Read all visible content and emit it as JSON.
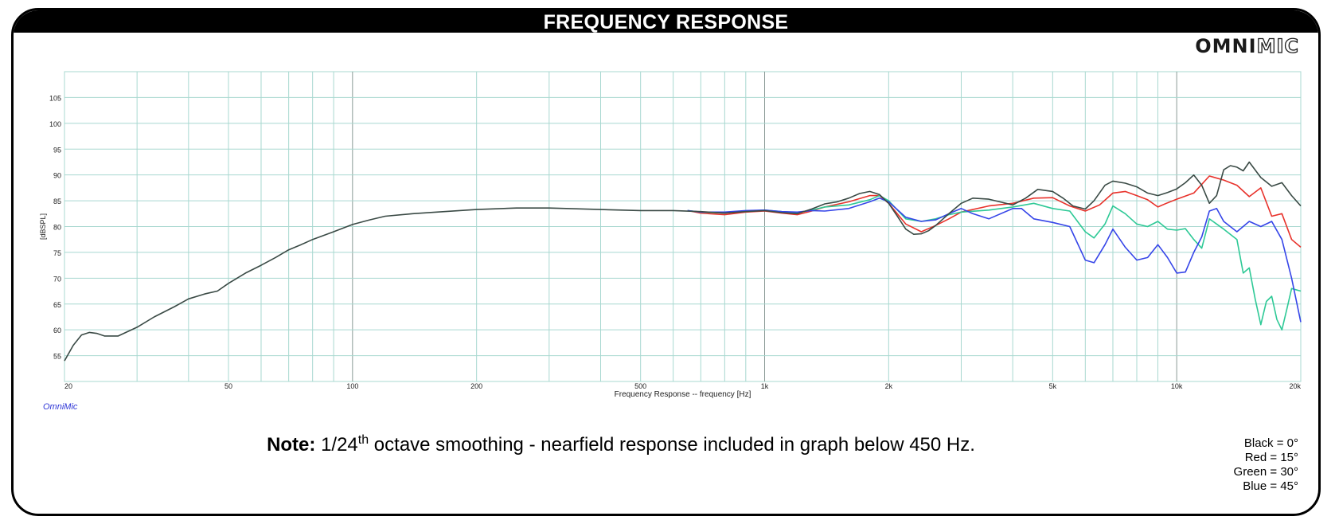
{
  "header": {
    "title": "FREQUENCY RESPONSE"
  },
  "logo": {
    "solid": "OMNI",
    "outline": "MIC"
  },
  "watermark": "OmniMic",
  "note": {
    "bold": "Note:",
    "pre": "1/24",
    "sup": "th",
    "post": "octave smoothing - nearfield response included in graph below 450 Hz."
  },
  "legend_key": [
    "Black = 0°",
    "Red = 15°",
    "Green = 30°",
    "Blue = 45°"
  ],
  "colors": {
    "black": "#3a4a45",
    "red": "#e8322b",
    "green": "#2ec996",
    "blue": "#3545e8",
    "grid": "#a8d8d0"
  },
  "chart_data": {
    "type": "line",
    "title": "",
    "xlabel": "Frequency Response -- frequency [Hz]",
    "ylabel": "[dBSPL]",
    "x_scale": "log",
    "xlim": [
      20,
      20000
    ],
    "ylim": [
      50,
      110
    ],
    "x_ticks": [
      20,
      50,
      100,
      200,
      500,
      1000,
      2000,
      5000,
      10000,
      20000
    ],
    "x_tick_labels": [
      "20",
      "50",
      "100",
      "200",
      "500",
      "1k",
      "2k",
      "5k",
      "10k",
      "20k"
    ],
    "y_ticks": [
      55,
      60,
      65,
      70,
      75,
      80,
      85,
      90,
      95,
      100,
      105
    ],
    "grid": true,
    "series": [
      {
        "name": "Black = 0°",
        "color": "#3a4a45",
        "points": [
          [
            20,
            54
          ],
          [
            21,
            57
          ],
          [
            22,
            59
          ],
          [
            23,
            59.5
          ],
          [
            24,
            59.3
          ],
          [
            25,
            58.8
          ],
          [
            27,
            58.8
          ],
          [
            30,
            60.5
          ],
          [
            33,
            62.5
          ],
          [
            37,
            64.5
          ],
          [
            40,
            66
          ],
          [
            44,
            67
          ],
          [
            47,
            67.5
          ],
          [
            50,
            69
          ],
          [
            55,
            71
          ],
          [
            60,
            72.5
          ],
          [
            65,
            74
          ],
          [
            70,
            75.5
          ],
          [
            75,
            76.5
          ],
          [
            80,
            77.5
          ],
          [
            90,
            79
          ],
          [
            100,
            80.4
          ],
          [
            110,
            81.3
          ],
          [
            120,
            82
          ],
          [
            140,
            82.5
          ],
          [
            160,
            82.8
          ],
          [
            200,
            83.3
          ],
          [
            250,
            83.6
          ],
          [
            300,
            83.6
          ],
          [
            400,
            83.3
          ],
          [
            500,
            83.1
          ],
          [
            600,
            83.1
          ],
          [
            700,
            82.9
          ],
          [
            800,
            82.6
          ],
          [
            900,
            82.9
          ],
          [
            1000,
            83.1
          ],
          [
            1100,
            82.7
          ],
          [
            1200,
            82.5
          ],
          [
            1300,
            83.4
          ],
          [
            1400,
            84.4
          ],
          [
            1500,
            84.8
          ],
          [
            1600,
            85.5
          ],
          [
            1700,
            86.4
          ],
          [
            1800,
            86.8
          ],
          [
            1900,
            86.2
          ],
          [
            2000,
            84.5
          ],
          [
            2100,
            82
          ],
          [
            2200,
            79.5
          ],
          [
            2300,
            78.5
          ],
          [
            2400,
            78.6
          ],
          [
            2500,
            79.2
          ],
          [
            2600,
            80.2
          ],
          [
            2800,
            82.5
          ],
          [
            3000,
            84.5
          ],
          [
            3200,
            85.5
          ],
          [
            3500,
            85.3
          ],
          [
            4000,
            84.2
          ],
          [
            4300,
            85.5
          ],
          [
            4600,
            87.2
          ],
          [
            5000,
            86.8
          ],
          [
            5300,
            85.5
          ],
          [
            5600,
            84
          ],
          [
            6000,
            83.4
          ],
          [
            6300,
            85
          ],
          [
            6700,
            88
          ],
          [
            7000,
            88.8
          ],
          [
            7500,
            88.4
          ],
          [
            8000,
            87.7
          ],
          [
            8500,
            86.5
          ],
          [
            9000,
            86
          ],
          [
            9500,
            86.6
          ],
          [
            10000,
            87.3
          ],
          [
            10500,
            88.5
          ],
          [
            11000,
            90
          ],
          [
            11500,
            88
          ],
          [
            12000,
            84.5
          ],
          [
            12500,
            86
          ],
          [
            13000,
            91
          ],
          [
            13500,
            91.8
          ],
          [
            14000,
            91.5
          ],
          [
            14500,
            90.8
          ],
          [
            15000,
            92.5
          ],
          [
            16000,
            89.5
          ],
          [
            17000,
            87.8
          ],
          [
            18000,
            88.5
          ],
          [
            19000,
            86
          ],
          [
            20000,
            84
          ]
        ]
      },
      {
        "name": "Red = 15°",
        "color": "#e8322b",
        "points": [
          [
            650,
            83.1
          ],
          [
            700,
            82.6
          ],
          [
            800,
            82.3
          ],
          [
            900,
            82.8
          ],
          [
            1000,
            83
          ],
          [
            1100,
            82.6
          ],
          [
            1200,
            82.3
          ],
          [
            1300,
            83
          ],
          [
            1400,
            83.8
          ],
          [
            1600,
            84.8
          ],
          [
            1800,
            86
          ],
          [
            1900,
            86
          ],
          [
            2000,
            84.5
          ],
          [
            2200,
            80.5
          ],
          [
            2400,
            79
          ],
          [
            2600,
            80.2
          ],
          [
            2800,
            81.5
          ],
          [
            3000,
            82.8
          ],
          [
            3500,
            84
          ],
          [
            4000,
            84.5
          ],
          [
            4500,
            85.5
          ],
          [
            5000,
            85.6
          ],
          [
            5500,
            84
          ],
          [
            6000,
            83
          ],
          [
            6500,
            84.2
          ],
          [
            7000,
            86.5
          ],
          [
            7500,
            86.8
          ],
          [
            8000,
            86
          ],
          [
            8500,
            85.2
          ],
          [
            9000,
            83.8
          ],
          [
            9500,
            84.6
          ],
          [
            10000,
            85.3
          ],
          [
            11000,
            86.5
          ],
          [
            12000,
            89.8
          ],
          [
            13000,
            89
          ],
          [
            14000,
            88
          ],
          [
            15000,
            85.8
          ],
          [
            16000,
            87.5
          ],
          [
            17000,
            82
          ],
          [
            18000,
            82.5
          ],
          [
            19000,
            77.5
          ],
          [
            20000,
            76
          ]
        ]
      },
      {
        "name": "Green = 30°",
        "color": "#2ec996",
        "points": [
          [
            650,
            83.1
          ],
          [
            700,
            82.8
          ],
          [
            800,
            82.6
          ],
          [
            900,
            83
          ],
          [
            1000,
            83.2
          ],
          [
            1100,
            82.9
          ],
          [
            1200,
            82.7
          ],
          [
            1300,
            83.2
          ],
          [
            1400,
            83.8
          ],
          [
            1600,
            84.2
          ],
          [
            1800,
            85.2
          ],
          [
            1900,
            86
          ],
          [
            2000,
            85
          ],
          [
            2200,
            81.5
          ],
          [
            2400,
            81
          ],
          [
            2600,
            81.5
          ],
          [
            2800,
            82.3
          ],
          [
            3000,
            82.8
          ],
          [
            3500,
            83.2
          ],
          [
            4000,
            83.8
          ],
          [
            4500,
            84.5
          ],
          [
            5000,
            83.5
          ],
          [
            5500,
            83
          ],
          [
            6000,
            79
          ],
          [
            6300,
            77.8
          ],
          [
            6700,
            80.5
          ],
          [
            7000,
            84
          ],
          [
            7500,
            82.5
          ],
          [
            8000,
            80.5
          ],
          [
            8500,
            80
          ],
          [
            9000,
            81
          ],
          [
            9500,
            79.5
          ],
          [
            10000,
            79.3
          ],
          [
            10500,
            79.6
          ],
          [
            11000,
            77.5
          ],
          [
            11500,
            75.8
          ],
          [
            12000,
            81.5
          ],
          [
            12500,
            80.5
          ],
          [
            13000,
            79.5
          ],
          [
            14000,
            77.5
          ],
          [
            14500,
            71
          ],
          [
            15000,
            72
          ],
          [
            15500,
            66
          ],
          [
            16000,
            61
          ],
          [
            16500,
            65.5
          ],
          [
            17000,
            66.5
          ],
          [
            17500,
            62
          ],
          [
            18000,
            60
          ],
          [
            18500,
            64
          ],
          [
            19000,
            68
          ],
          [
            20000,
            67.5
          ]
        ]
      },
      {
        "name": "Blue = 45°",
        "color": "#3545e8",
        "points": [
          [
            650,
            83.1
          ],
          [
            700,
            82.8
          ],
          [
            800,
            82.8
          ],
          [
            900,
            83.1
          ],
          [
            1000,
            83.2
          ],
          [
            1100,
            82.9
          ],
          [
            1200,
            82.8
          ],
          [
            1300,
            83.1
          ],
          [
            1400,
            83
          ],
          [
            1600,
            83.5
          ],
          [
            1800,
            84.8
          ],
          [
            1900,
            85.5
          ],
          [
            2000,
            84.8
          ],
          [
            2200,
            81.8
          ],
          [
            2400,
            81
          ],
          [
            2600,
            81.3
          ],
          [
            2800,
            82.5
          ],
          [
            3000,
            83.5
          ],
          [
            3200,
            82.5
          ],
          [
            3500,
            81.5
          ],
          [
            4000,
            83.5
          ],
          [
            4200,
            83.5
          ],
          [
            4500,
            81.5
          ],
          [
            5000,
            80.8
          ],
          [
            5500,
            80
          ],
          [
            6000,
            73.5
          ],
          [
            6300,
            73
          ],
          [
            6700,
            76.5
          ],
          [
            7000,
            79.5
          ],
          [
            7500,
            76
          ],
          [
            8000,
            73.5
          ],
          [
            8500,
            74
          ],
          [
            9000,
            76.5
          ],
          [
            9500,
            74
          ],
          [
            10000,
            71
          ],
          [
            10500,
            71.2
          ],
          [
            11000,
            75
          ],
          [
            11500,
            78
          ],
          [
            12000,
            83
          ],
          [
            12500,
            83.5
          ],
          [
            13000,
            81
          ],
          [
            14000,
            79
          ],
          [
            15000,
            81
          ],
          [
            16000,
            80
          ],
          [
            17000,
            81
          ],
          [
            18000,
            77.5
          ],
          [
            19000,
            70
          ],
          [
            20000,
            61.5
          ]
        ]
      }
    ]
  }
}
